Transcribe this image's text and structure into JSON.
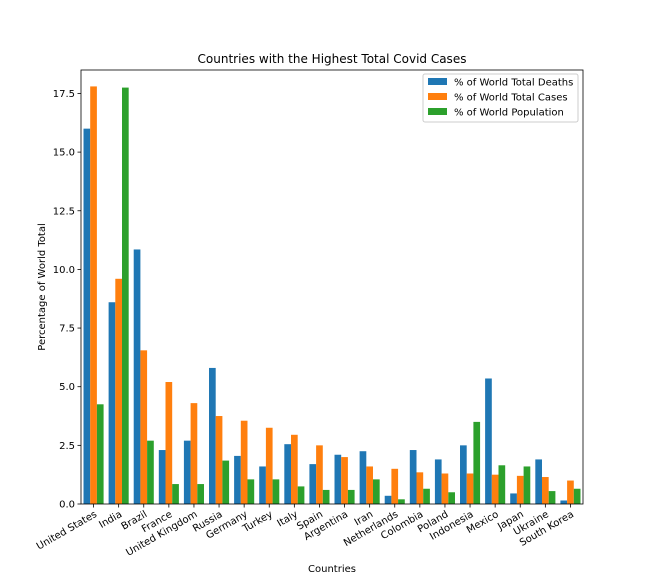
{
  "chart_data": {
    "type": "bar",
    "title": "Countries with the Highest Total Covid Cases",
    "xlabel": "Countries",
    "ylabel": "Percentage of World Total",
    "ylim": [
      0,
      18.5
    ],
    "yticks": [
      0.0,
      2.5,
      5.0,
      7.5,
      10.0,
      12.5,
      15.0,
      17.5
    ],
    "ytick_labels": [
      "0.0",
      "2.5",
      "5.0",
      "7.5",
      "10.0",
      "12.5",
      "15.0",
      "17.5"
    ],
    "legend_position": "top-right",
    "grid": false,
    "categories": [
      "United States",
      "India",
      "Brazil",
      "France",
      "United Kingdom",
      "Russia",
      "Germany",
      "Turkey",
      "Italy",
      "Spain",
      "Argentina",
      "Iran",
      "Netherlands",
      "Colombia",
      "Poland",
      "Indonesia",
      "Mexico",
      "Japan",
      "Ukraine",
      "South Korea"
    ],
    "series": [
      {
        "name": "% of World Total Deaths",
        "color": "#1f77b4",
        "values": [
          16.0,
          8.6,
          10.85,
          2.3,
          2.7,
          5.8,
          2.05,
          1.6,
          2.55,
          1.7,
          2.1,
          2.25,
          0.35,
          2.3,
          1.9,
          2.5,
          5.35,
          0.45,
          1.9,
          0.15
        ]
      },
      {
        "name": "% of World Total Cases",
        "color": "#ff7f0e",
        "values": [
          17.8,
          9.6,
          6.55,
          5.2,
          4.3,
          3.75,
          3.55,
          3.25,
          2.95,
          2.5,
          2.0,
          1.6,
          1.5,
          1.35,
          1.3,
          1.3,
          1.25,
          1.2,
          1.15,
          1.0
        ]
      },
      {
        "name": "% of World Population",
        "color": "#2ca02c",
        "values": [
          4.25,
          17.75,
          2.7,
          0.85,
          0.85,
          1.85,
          1.05,
          1.05,
          0.75,
          0.6,
          0.6,
          1.05,
          0.2,
          0.65,
          0.5,
          3.5,
          1.65,
          1.6,
          0.55,
          0.65
        ]
      }
    ]
  }
}
